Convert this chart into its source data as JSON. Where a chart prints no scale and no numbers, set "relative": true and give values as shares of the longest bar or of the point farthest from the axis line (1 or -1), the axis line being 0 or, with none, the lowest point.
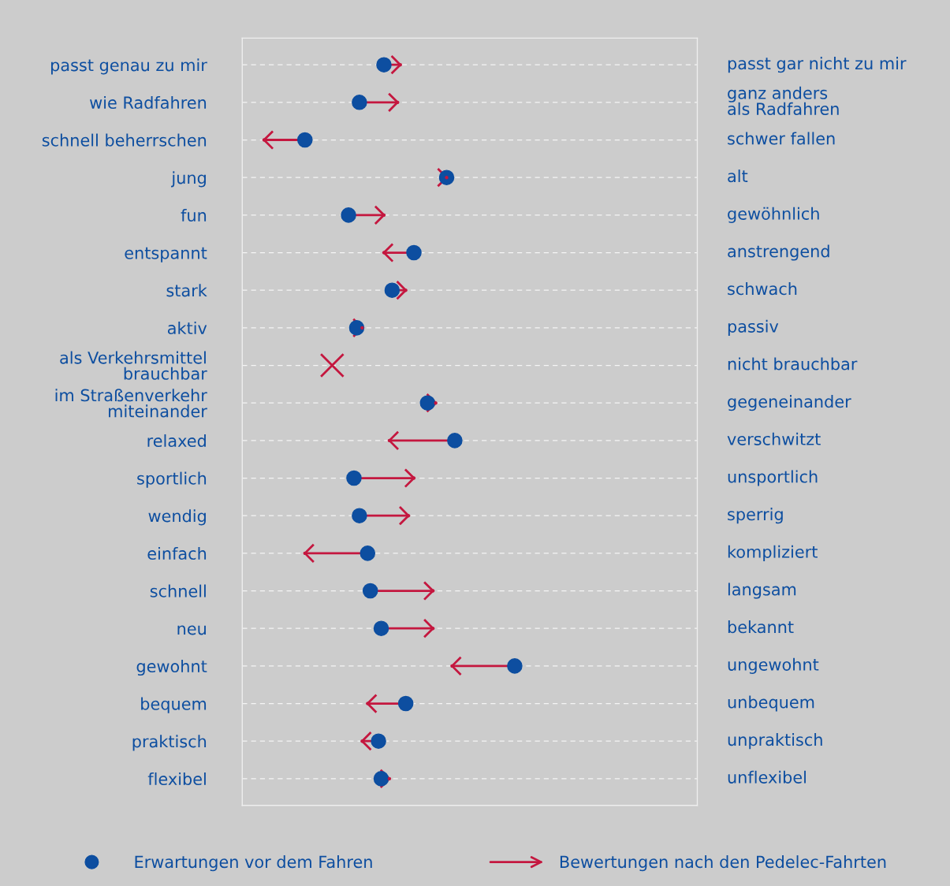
{
  "chart_data": {
    "type": "scatter",
    "orientation": "horizontal",
    "relative": true,
    "grid": "y",
    "legend": "bottom",
    "categories": [
      "passt genau zu mir",
      "wie Radfahren",
      "schnell beherrschen",
      "jung",
      "fun",
      "entspannt",
      "stark",
      "aktiv",
      "als Verkehrsmittel\nbrauchbar",
      "im Straßenverkehr\nmiteinander",
      "relaxed",
      "sportlich",
      "wendig",
      "einfach",
      "schnell",
      "neu",
      "gewohnt",
      "bequem",
      "praktisch",
      "flexibel"
    ],
    "annotations": [
      "passt gar nicht zu mir",
      "ganz anders\nals Radfahren",
      "schwer fallen",
      "alt",
      "gewöhnlich",
      "anstrengend",
      "schwach",
      "passiv",
      "nicht brauchbar",
      "gegeneinander",
      "verschwitzt",
      "unsportlich",
      "sperrig",
      "kompliziert",
      "langsam",
      "bekannt",
      "ungewohnt",
      "unbequem",
      "unpraktisch",
      "unflexibel"
    ],
    "series": [
      {
        "name": "Erwartungen vor dem Fahren",
        "color": "#0d4ea0",
        "marker": "circle",
        "values": [
          0.52,
          0.43,
          0.23,
          0.75,
          0.39,
          0.63,
          0.55,
          0.42,
          null,
          0.68,
          0.78,
          0.41,
          0.43,
          0.46,
          0.47,
          0.51,
          1.0,
          0.6,
          0.5,
          0.51
        ]
      },
      {
        "name": "Bewertungen nach den Pedelec-Fahrten",
        "color": "#c4173f",
        "values": [
          0.58,
          0.57,
          0.08,
          0.75,
          0.52,
          0.52,
          0.6,
          0.44,
          0.33,
          0.71,
          0.54,
          0.63,
          0.61,
          0.23,
          0.7,
          0.7,
          0.77,
          0.46,
          0.44,
          0.54
        ]
      }
    ]
  }
}
